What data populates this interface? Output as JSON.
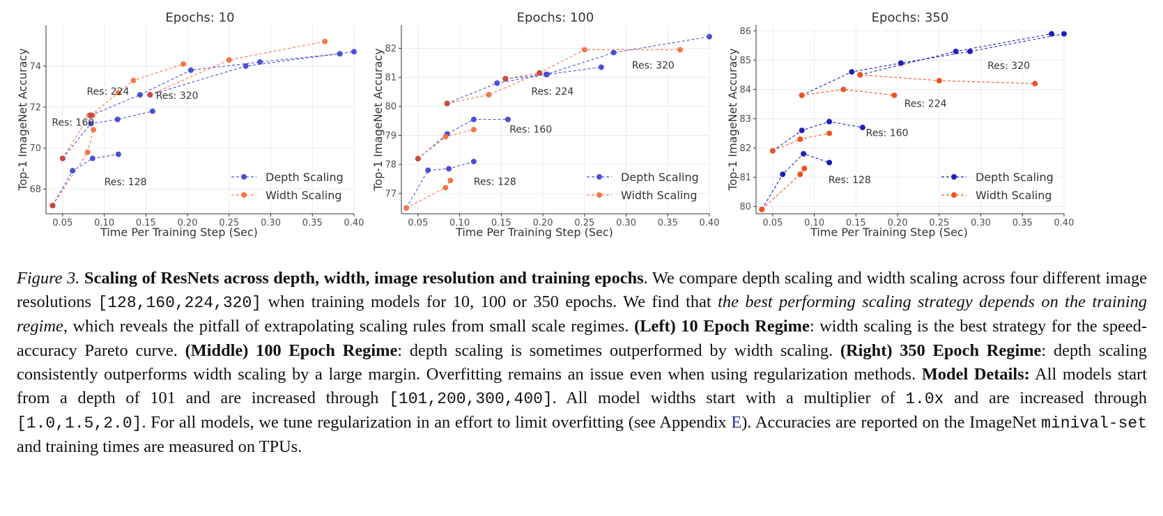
{
  "figure": {
    "caption": {
      "label": "Figure 3.",
      "title": "Scaling of ResNets across depth, width, image resolution and training epochs",
      "t1": ". We compare depth scaling and width scaling across four different image resolutions ",
      "resolutions": "[128,160,224,320]",
      "t2": " when training models for 10, 100 or 350 epochs. We find that ",
      "emph": "the best performing scaling strategy depends on the training regime",
      "t3": ", which reveals the pitfall of extrapolating scaling rules from small scale regimes. ",
      "left_b": "(Left) 10 Epoch Regime",
      "left_t": ": width scaling is the best strategy for the speed-accuracy Pareto curve. ",
      "mid_b": "(Middle) 100 Epoch Regime",
      "mid_t": ": depth scaling is sometimes outperformed by width scaling. ",
      "right_b": "(Right) 350 Epoch Regime",
      "right_t": ": depth scaling consistently outperforms width scaling by a large margin. Overfitting remains an issue even when using regularization methods. ",
      "details_b": "Model Details:",
      "details_t1": " All models start from a depth of 101 and are increased through ",
      "depths": "[101,200,300,400]",
      "details_t2": ". All model widths start with a multiplier of ",
      "mult": "1.0x",
      "details_t3": " and are increased through ",
      "widths": "[1.0,1.5,2.0]",
      "details_t4": ". For all models, we tune regularization in an effort to limit overfitting (see Appendix ",
      "appendix": "E",
      "details_t5": "). Accuracies are reported on the ImageNet ",
      "set": "minival-set",
      "details_t6": " and training times are measured on TPUs."
    }
  },
  "chart_data": [
    {
      "type": "line",
      "title": "Epochs: 10",
      "xlabel": "Time Per Training Step (Sec)",
      "ylabel": "Top-1 ImageNet Accuracy",
      "xlim": [
        0.03,
        0.4
      ],
      "ylim": [
        66.8,
        76.0
      ],
      "xticks": [
        0.05,
        0.1,
        0.15,
        0.2,
        0.25,
        0.3,
        0.35,
        0.4
      ],
      "xtick_labels": [
        "0.05",
        "0.10",
        "0.15",
        "0.20",
        "0.25",
        "0.30",
        "0.35",
        "0.40"
      ],
      "yticks": [
        68,
        70,
        72,
        74
      ],
      "ytick_labels": [
        "68",
        "70",
        "72",
        "74"
      ],
      "grid": true,
      "legend": "bottom-right",
      "colors": {
        "depth": "#4b4fd6",
        "width": "#f4784a",
        "overlap": "#c94a41"
      },
      "series": [
        {
          "name": "Depth Scaling",
          "group": "128",
          "x": [
            0.038,
            0.062,
            0.086,
            0.117
          ],
          "y": [
            67.2,
            68.9,
            69.5,
            69.7
          ]
        },
        {
          "name": "Width Scaling",
          "group": "128",
          "x": [
            0.038,
            0.08,
            0.087
          ],
          "y": [
            67.2,
            69.8,
            70.9
          ]
        },
        {
          "name": "Depth Scaling",
          "group": "160",
          "x": [
            0.05,
            0.084,
            0.116,
            0.158
          ],
          "y": [
            69.5,
            71.2,
            71.4,
            71.8
          ]
        },
        {
          "name": "Width Scaling",
          "group": "160",
          "x": [
            0.05,
            0.082,
            0.086
          ],
          "y": [
            69.5,
            71.6,
            71.6
          ]
        },
        {
          "name": "Depth Scaling",
          "group": "224",
          "x": [
            0.084,
            0.143,
            0.204,
            0.287,
            0.383
          ],
          "y": [
            71.6,
            72.6,
            73.8,
            74.2,
            74.6
          ]
        },
        {
          "name": "Width Scaling",
          "group": "224",
          "x": [
            0.084,
            0.117,
            0.135,
            0.195
          ],
          "y": [
            71.6,
            72.7,
            73.3,
            74.1
          ]
        },
        {
          "name": "Depth Scaling",
          "group": "320",
          "x": [
            0.155,
            0.27,
            0.4
          ],
          "y": [
            72.6,
            74.0,
            74.7
          ]
        },
        {
          "name": "Width Scaling",
          "group": "320",
          "x": [
            0.155,
            0.25,
            0.365
          ],
          "y": [
            72.6,
            74.3,
            75.2
          ]
        }
      ],
      "overlap_points": {
        "x": [
          0.038,
          0.05,
          0.084,
          0.155
        ],
        "y": [
          67.2,
          69.5,
          71.6,
          72.6
        ]
      },
      "annotations": [
        {
          "text": "Res: 128",
          "x": 0.1,
          "y": 68.2
        },
        {
          "text": "Res: 160",
          "x": 0.037,
          "y": 71.1
        },
        {
          "text": "Res: 224",
          "x": 0.079,
          "y": 72.6
        },
        {
          "text": "Res: 320",
          "x": 0.162,
          "y": 72.4
        }
      ]
    },
    {
      "type": "line",
      "title": "Epochs: 100",
      "xlabel": "Time Per Training Step (Sec)",
      "ylabel": "Top-1 ImageNet Accuracy",
      "xlim": [
        0.03,
        0.4
      ],
      "ylim": [
        76.3,
        82.8
      ],
      "xticks": [
        0.05,
        0.1,
        0.15,
        0.2,
        0.25,
        0.3,
        0.35,
        0.4
      ],
      "xtick_labels": [
        "0.05",
        "0.10",
        "0.15",
        "0.20",
        "0.25",
        "0.30",
        "0.35",
        "0.40"
      ],
      "yticks": [
        77,
        78,
        79,
        80,
        81,
        82
      ],
      "ytick_labels": [
        "77",
        "78",
        "79",
        "80",
        "81",
        "82"
      ],
      "grid": true,
      "legend": "bottom-right",
      "colors": {
        "depth": "#4b4fd6",
        "width": "#f4784a",
        "overlap": "#c94a41"
      },
      "series": [
        {
          "name": "Depth Scaling",
          "group": "128",
          "x": [
            0.036,
            0.062,
            0.087,
            0.117
          ],
          "y": [
            76.5,
            77.8,
            77.85,
            78.1
          ]
        },
        {
          "name": "Width Scaling",
          "group": "128",
          "x": [
            0.036,
            0.083,
            0.089
          ],
          "y": [
            76.5,
            77.2,
            77.45
          ]
        },
        {
          "name": "Depth Scaling",
          "group": "160",
          "x": [
            0.05,
            0.085,
            0.117,
            0.158
          ],
          "y": [
            78.2,
            79.05,
            79.55,
            79.55
          ]
        },
        {
          "name": "Width Scaling",
          "group": "160",
          "x": [
            0.05,
            0.083,
            0.117
          ],
          "y": [
            78.2,
            78.95,
            79.2
          ]
        },
        {
          "name": "Depth Scaling",
          "group": "224",
          "x": [
            0.085,
            0.145,
            0.204,
            0.285,
            0.4
          ],
          "y": [
            80.1,
            80.8,
            81.1,
            81.85,
            82.4
          ]
        },
        {
          "name": "Width Scaling",
          "group": "224",
          "x": [
            0.085,
            0.135,
            0.196,
            0.25,
            0.365
          ],
          "y": [
            80.1,
            80.4,
            81.15,
            81.95,
            81.95
          ]
        },
        {
          "name": "Depth Scaling",
          "group": "320",
          "x": [
            0.155,
            0.205,
            0.27
          ],
          "y": [
            80.95,
            81.1,
            81.35
          ]
        },
        {
          "name": "Width Scaling",
          "group": "320",
          "x": [
            0.155,
            0.196
          ],
          "y": [
            80.95,
            81.15
          ]
        }
      ],
      "overlap_points": {
        "x": [
          0.05,
          0.085,
          0.155,
          0.196
        ],
        "y": [
          78.2,
          80.1,
          80.95,
          81.15
        ]
      },
      "annotations": [
        {
          "text": "Res: 128",
          "x": 0.117,
          "y": 77.3
        },
        {
          "text": "Res: 160",
          "x": 0.16,
          "y": 79.1
        },
        {
          "text": "Res: 224",
          "x": 0.186,
          "y": 80.4
        },
        {
          "text": "Res: 320",
          "x": 0.307,
          "y": 81.3
        }
      ]
    },
    {
      "type": "line",
      "title": "Epochs: 350",
      "xlabel": "Time Per Training Step (Sec)",
      "ylabel": "Top-1 ImageNet Accuracy",
      "xlim": [
        0.03,
        0.4
      ],
      "ylim": [
        79.75,
        86.2
      ],
      "xticks": [
        0.05,
        0.1,
        0.15,
        0.2,
        0.25,
        0.3,
        0.35,
        0.4
      ],
      "xtick_labels": [
        "0.05",
        "0.10",
        "0.15",
        "0.20",
        "0.25",
        "0.30",
        "0.35",
        "0.40"
      ],
      "yticks": [
        80,
        81,
        82,
        83,
        84,
        85,
        86
      ],
      "ytick_labels": [
        "80",
        "81",
        "82",
        "83",
        "84",
        "85",
        "86"
      ],
      "grid": true,
      "legend": "bottom-right",
      "colors": {
        "depth": "#1f1fb8",
        "width": "#f2521d",
        "overlap": "#f2521d"
      },
      "series": [
        {
          "name": "Depth Scaling",
          "group": "128",
          "x": [
            0.037,
            0.062,
            0.087,
            0.118
          ],
          "y": [
            79.9,
            81.1,
            81.8,
            81.5
          ]
        },
        {
          "name": "Width Scaling",
          "group": "128",
          "x": [
            0.037,
            0.083,
            0.088
          ],
          "y": [
            79.9,
            81.1,
            81.3
          ]
        },
        {
          "name": "Depth Scaling",
          "group": "160",
          "x": [
            0.05,
            0.085,
            0.118,
            0.158
          ],
          "y": [
            81.9,
            82.6,
            82.9,
            82.7
          ]
        },
        {
          "name": "Width Scaling",
          "group": "160",
          "x": [
            0.05,
            0.083,
            0.118
          ],
          "y": [
            81.9,
            82.3,
            82.5
          ]
        },
        {
          "name": "Depth Scaling",
          "group": "224",
          "x": [
            0.085,
            0.145,
            0.204,
            0.287,
            0.4
          ],
          "y": [
            83.8,
            84.6,
            84.9,
            85.3,
            85.9
          ]
        },
        {
          "name": "Width Scaling",
          "group": "224",
          "x": [
            0.085,
            0.135,
            0.196
          ],
          "y": [
            83.8,
            84.0,
            83.8
          ]
        },
        {
          "name": "Depth Scaling",
          "group": "320",
          "x": [
            0.155,
            0.27,
            0.385
          ],
          "y": [
            84.5,
            85.3,
            85.9
          ]
        },
        {
          "name": "Width Scaling",
          "group": "320",
          "x": [
            0.155,
            0.25,
            0.365
          ],
          "y": [
            84.5,
            84.3,
            84.2
          ]
        }
      ],
      "overlap_points": {
        "x": [],
        "y": []
      },
      "annotations": [
        {
          "text": "Res: 128",
          "x": 0.117,
          "y": 80.8
        },
        {
          "text": "Res: 160",
          "x": 0.162,
          "y": 82.4
        },
        {
          "text": "Res: 224",
          "x": 0.208,
          "y": 83.4
        },
        {
          "text": "Res: 320",
          "x": 0.308,
          "y": 84.7
        }
      ]
    }
  ]
}
